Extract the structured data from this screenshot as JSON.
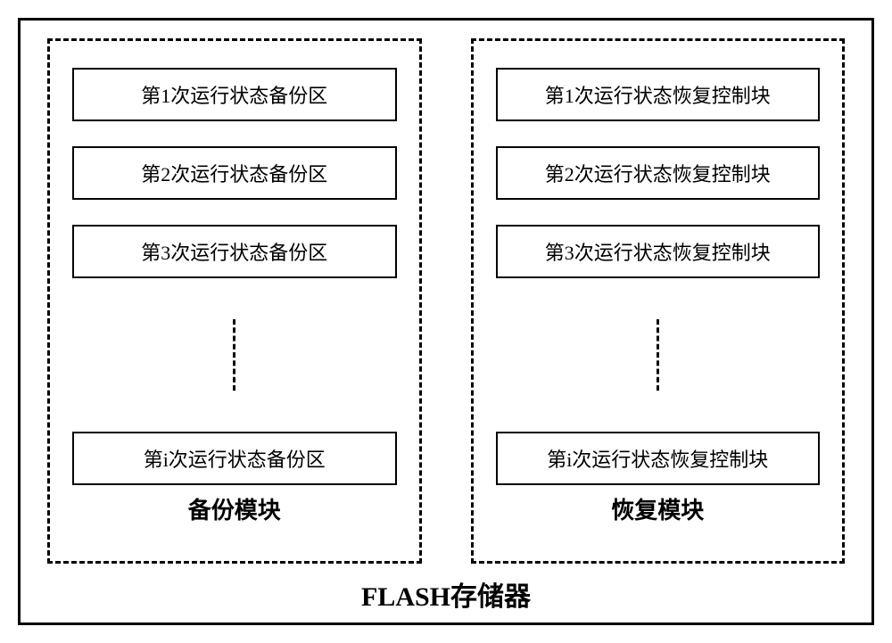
{
  "main_label": "FLASH存储器",
  "backup_module": {
    "label": "备份模块",
    "blocks": {
      "b1": "第1次运行状态备份区",
      "b2": "第2次运行状态备份区",
      "b3": "第3次运行状态备份区",
      "bi": "第i次运行状态备份区"
    }
  },
  "recovery_module": {
    "label": "恢复模块",
    "blocks": {
      "r1": "第1次运行状态恢复控制块",
      "r2": "第2次运行状态恢复控制块",
      "r3": "第3次运行状态恢复控制块",
      "ri": "第i次运行状态恢复控制块"
    }
  },
  "styling": {
    "type": "diagram",
    "outer_border_color": "#000000",
    "outer_border_width": 3,
    "module_border_style": "dashed",
    "module_border_width": 3,
    "module_border_color": "#000000",
    "block_border_color": "#000000",
    "block_border_width": 2,
    "block_font_size": 22,
    "module_label_font_size": 26,
    "main_label_font_size": 30,
    "background_color": "#ffffff",
    "font_family": "SimSun",
    "connector_style": "dashed",
    "connector_width": 3,
    "connector_height": 80,
    "module_gap": 55,
    "block_gap": 28
  }
}
